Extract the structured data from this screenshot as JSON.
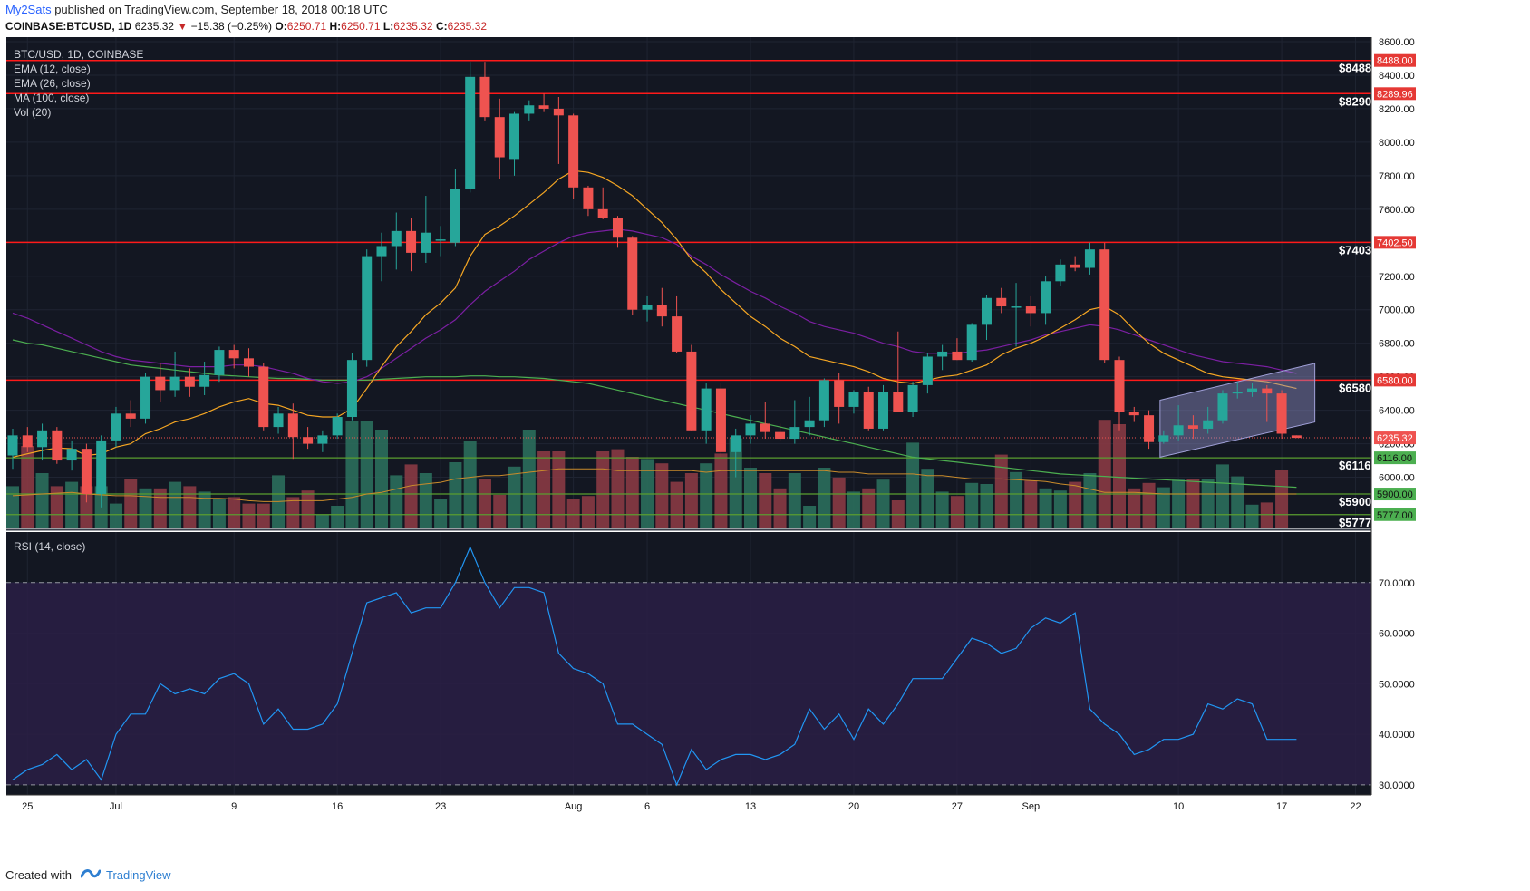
{
  "header": {
    "author": "My2Sats",
    "published": "published on TradingView.com, September 18, 2018 00:18 UTC",
    "symbol": "COINBASE:BTCUSD, 1D",
    "last": "6235.32",
    "change_arrow": "▼",
    "change": "−15.38 (−0.25%)",
    "o_label": "O:",
    "o_val": "6250.71",
    "h_label": "H:",
    "h_val": "6250.71",
    "l_label": "L:",
    "l_val": "6235.32",
    "c_label": "C:",
    "c_val": "6235.32"
  },
  "legend": {
    "symbol": "BTC/USD, 1D, COINBASE",
    "ema12": "EMA (12, close)",
    "ema26": "EMA (26, close)",
    "ma100": "MA (100, close)",
    "vol": "Vol (20)",
    "rsi": "RSI (14, close)"
  },
  "footer": {
    "created_with": "Created with",
    "brand": "TradingView"
  },
  "colors": {
    "bg": "#131722",
    "up": "#26a69a",
    "down": "#ef5350",
    "ema12": "#f5a623",
    "ema26": "#7b1fa2",
    "ma100": "#4caf50",
    "rsi": "#2196f3",
    "rsi_band": "#2a1f45",
    "resistance": "#ff1a1a",
    "support": "#5a9e2f",
    "channel": "#9090c8"
  },
  "chart_data": {
    "type": "candlestick",
    "price_axis": {
      "min": 5700,
      "max": 8600,
      "ticks": [
        "8600.00",
        "8400.00",
        "8200.00",
        "8000.00",
        "7800.00",
        "7600.00",
        "7400.00",
        "7200.00",
        "7000.00",
        "6800.00",
        "6600.00",
        "6400.00",
        "6200.00",
        "6000.00"
      ]
    },
    "rsi_axis": {
      "min": 28,
      "max": 80,
      "ticks": [
        "70.0000",
        "60.0000",
        "50.0000",
        "40.0000",
        "30.0000"
      ]
    },
    "x_ticks": [
      {
        "label": "25",
        "i": 1
      },
      {
        "label": "Jul",
        "i": 7
      },
      {
        "label": "9",
        "i": 15
      },
      {
        "label": "16",
        "i": 22
      },
      {
        "label": "23",
        "i": 29
      },
      {
        "label": "Aug",
        "i": 38
      },
      {
        "label": "6",
        "i": 43
      },
      {
        "label": "13",
        "i": 50
      },
      {
        "label": "20",
        "i": 57
      },
      {
        "label": "27",
        "i": 64
      },
      {
        "label": "Sep",
        "i": 69
      },
      {
        "label": "10",
        "i": 79
      },
      {
        "label": "17",
        "i": 86
      },
      {
        "label": "22",
        "i": 91
      }
    ],
    "candles": [
      {
        "o": 6130,
        "h": 6290,
        "l": 6050,
        "c": 6250
      },
      {
        "o": 6250,
        "h": 6300,
        "l": 6150,
        "c": 6180
      },
      {
        "o": 6180,
        "h": 6320,
        "l": 6100,
        "c": 6280
      },
      {
        "o": 6280,
        "h": 6300,
        "l": 6080,
        "c": 6100
      },
      {
        "o": 6100,
        "h": 6220,
        "l": 6040,
        "c": 6170
      },
      {
        "o": 6170,
        "h": 6200,
        "l": 5850,
        "c": 5900
      },
      {
        "o": 5900,
        "h": 6250,
        "l": 5820,
        "c": 6220
      },
      {
        "o": 6220,
        "h": 6420,
        "l": 6180,
        "c": 6380
      },
      {
        "o": 6380,
        "h": 6460,
        "l": 6300,
        "c": 6350
      },
      {
        "o": 6350,
        "h": 6620,
        "l": 6320,
        "c": 6600
      },
      {
        "o": 6600,
        "h": 6680,
        "l": 6450,
        "c": 6520
      },
      {
        "o": 6520,
        "h": 6750,
        "l": 6480,
        "c": 6600
      },
      {
        "o": 6600,
        "h": 6650,
        "l": 6480,
        "c": 6540
      },
      {
        "o": 6540,
        "h": 6690,
        "l": 6490,
        "c": 6610
      },
      {
        "o": 6610,
        "h": 6780,
        "l": 6570,
        "c": 6760
      },
      {
        "o": 6760,
        "h": 6790,
        "l": 6650,
        "c": 6710
      },
      {
        "o": 6710,
        "h": 6770,
        "l": 6600,
        "c": 6660
      },
      {
        "o": 6660,
        "h": 6680,
        "l": 6280,
        "c": 6300
      },
      {
        "o": 6300,
        "h": 6420,
        "l": 6260,
        "c": 6380
      },
      {
        "o": 6380,
        "h": 6440,
        "l": 6110,
        "c": 6240
      },
      {
        "o": 6240,
        "h": 6300,
        "l": 6170,
        "c": 6200
      },
      {
        "o": 6200,
        "h": 6280,
        "l": 6150,
        "c": 6250
      },
      {
        "o": 6250,
        "h": 6380,
        "l": 6230,
        "c": 6360
      },
      {
        "o": 6360,
        "h": 6740,
        "l": 6340,
        "c": 6700
      },
      {
        "o": 6700,
        "h": 7360,
        "l": 6660,
        "c": 7320
      },
      {
        "o": 7320,
        "h": 7460,
        "l": 7170,
        "c": 7380
      },
      {
        "o": 7380,
        "h": 7580,
        "l": 7240,
        "c": 7470
      },
      {
        "o": 7470,
        "h": 7550,
        "l": 7230,
        "c": 7340
      },
      {
        "o": 7340,
        "h": 7680,
        "l": 7280,
        "c": 7460
      },
      {
        "o": 7420,
        "h": 7500,
        "l": 7320,
        "c": 7420
      },
      {
        "o": 7400,
        "h": 7840,
        "l": 7380,
        "c": 7720
      },
      {
        "o": 7720,
        "h": 8480,
        "l": 7700,
        "c": 8390
      },
      {
        "o": 8390,
        "h": 8480,
        "l": 8130,
        "c": 8150
      },
      {
        "o": 8150,
        "h": 8260,
        "l": 7780,
        "c": 7910
      },
      {
        "o": 7900,
        "h": 8180,
        "l": 7800,
        "c": 8170
      },
      {
        "o": 8170,
        "h": 8250,
        "l": 8130,
        "c": 8220
      },
      {
        "o": 8220,
        "h": 8290,
        "l": 8180,
        "c": 8200
      },
      {
        "o": 8200,
        "h": 8270,
        "l": 7870,
        "c": 8160
      },
      {
        "o": 8160,
        "h": 8170,
        "l": 7660,
        "c": 7730
      },
      {
        "o": 7730,
        "h": 7740,
        "l": 7560,
        "c": 7600
      },
      {
        "o": 7600,
        "h": 7730,
        "l": 7540,
        "c": 7550
      },
      {
        "o": 7550,
        "h": 7560,
        "l": 7370,
        "c": 7430
      },
      {
        "o": 7430,
        "h": 7440,
        "l": 6970,
        "c": 7000
      },
      {
        "o": 7000,
        "h": 7080,
        "l": 6930,
        "c": 7030
      },
      {
        "o": 7030,
        "h": 7130,
        "l": 6900,
        "c": 6960
      },
      {
        "o": 6960,
        "h": 7080,
        "l": 6740,
        "c": 6750
      },
      {
        "o": 6750,
        "h": 6790,
        "l": 6280,
        "c": 6280
      },
      {
        "o": 6280,
        "h": 6560,
        "l": 6200,
        "c": 6530
      },
      {
        "o": 6530,
        "h": 6560,
        "l": 6120,
        "c": 6150
      },
      {
        "o": 6150,
        "h": 6290,
        "l": 6000,
        "c": 6250
      },
      {
        "o": 6250,
        "h": 6370,
        "l": 6200,
        "c": 6320
      },
      {
        "o": 6320,
        "h": 6450,
        "l": 6230,
        "c": 6270
      },
      {
        "o": 6270,
        "h": 6320,
        "l": 6220,
        "c": 6230
      },
      {
        "o": 6230,
        "h": 6460,
        "l": 6200,
        "c": 6300
      },
      {
        "o": 6300,
        "h": 6480,
        "l": 6250,
        "c": 6340
      },
      {
        "o": 6340,
        "h": 6590,
        "l": 6300,
        "c": 6580
      },
      {
        "o": 6580,
        "h": 6620,
        "l": 6320,
        "c": 6420
      },
      {
        "o": 6420,
        "h": 6520,
        "l": 6380,
        "c": 6510
      },
      {
        "o": 6510,
        "h": 6540,
        "l": 6280,
        "c": 6290
      },
      {
        "o": 6290,
        "h": 6550,
        "l": 6280,
        "c": 6510
      },
      {
        "o": 6510,
        "h": 6870,
        "l": 6390,
        "c": 6390
      },
      {
        "o": 6390,
        "h": 6570,
        "l": 6360,
        "c": 6550
      },
      {
        "o": 6550,
        "h": 6740,
        "l": 6500,
        "c": 6720
      },
      {
        "o": 6720,
        "h": 6790,
        "l": 6640,
        "c": 6750
      },
      {
        "o": 6750,
        "h": 6830,
        "l": 6700,
        "c": 6700
      },
      {
        "o": 6700,
        "h": 6920,
        "l": 6690,
        "c": 6910
      },
      {
        "o": 6910,
        "h": 7090,
        "l": 6820,
        "c": 7070
      },
      {
        "o": 7070,
        "h": 7130,
        "l": 6980,
        "c": 7020
      },
      {
        "o": 7020,
        "h": 7160,
        "l": 6780,
        "c": 7020
      },
      {
        "o": 7020,
        "h": 7080,
        "l": 6900,
        "c": 6980
      },
      {
        "o": 6980,
        "h": 7200,
        "l": 6910,
        "c": 7170
      },
      {
        "o": 7170,
        "h": 7300,
        "l": 7140,
        "c": 7270
      },
      {
        "o": 7270,
        "h": 7320,
        "l": 7230,
        "c": 7250
      },
      {
        "o": 7250,
        "h": 7400,
        "l": 7210,
        "c": 7360
      },
      {
        "o": 7360,
        "h": 7400,
        "l": 6680,
        "c": 6700
      },
      {
        "o": 6700,
        "h": 6720,
        "l": 6280,
        "c": 6390
      },
      {
        "o": 6390,
        "h": 6420,
        "l": 6330,
        "c": 6370
      },
      {
        "o": 6370,
        "h": 6400,
        "l": 6170,
        "c": 6210
      },
      {
        "o": 6210,
        "h": 6280,
        "l": 6200,
        "c": 6250
      },
      {
        "o": 6250,
        "h": 6430,
        "l": 6220,
        "c": 6310
      },
      {
        "o": 6310,
        "h": 6370,
        "l": 6230,
        "c": 6290
      },
      {
        "o": 6290,
        "h": 6420,
        "l": 6260,
        "c": 6340
      },
      {
        "o": 6340,
        "h": 6520,
        "l": 6320,
        "c": 6500
      },
      {
        "o": 6500,
        "h": 6570,
        "l": 6470,
        "c": 6510
      },
      {
        "o": 6510,
        "h": 6560,
        "l": 6480,
        "c": 6530
      },
      {
        "o": 6530,
        "h": 6550,
        "l": 6330,
        "c": 6500
      },
      {
        "o": 6500,
        "h": 6520,
        "l": 6230,
        "c": 6260
      },
      {
        "o": 6250,
        "h": 6250,
        "l": 6235,
        "c": 6235
      }
    ],
    "volume_rel": [
      0.38,
      0.75,
      0.5,
      0.38,
      0.42,
      0.38,
      0.38,
      0.22,
      0.45,
      0.36,
      0.36,
      0.42,
      0.38,
      0.33,
      0.27,
      0.28,
      0.22,
      0.22,
      0.48,
      0.28,
      0.34,
      0.12,
      0.2,
      0.98,
      0.98,
      0.9,
      0.48,
      0.58,
      0.5,
      0.26,
      0.6,
      0.8,
      0.45,
      0.3,
      0.56,
      0.9,
      0.7,
      0.7,
      0.26,
      0.29,
      0.7,
      0.72,
      0.65,
      0.63,
      0.59,
      0.42,
      0.5,
      0.59,
      0.68,
      0.82,
      0.55,
      0.5,
      0.36,
      0.5,
      0.2,
      0.55,
      0.46,
      0.33,
      0.36,
      0.44,
      0.25,
      0.78,
      0.54,
      0.33,
      0.29,
      0.41,
      0.4,
      0.67,
      0.51,
      0.43,
      0.36,
      0.34,
      0.42,
      0.5,
      0.99,
      0.95,
      0.36,
      0.41,
      0.37,
      0.44,
      0.45,
      0.45,
      0.58,
      0.47,
      0.21,
      0.23,
      0.53,
      0.0
    ],
    "ema12": [
      6120,
      6140,
      6160,
      6175,
      6170,
      6130,
      6140,
      6180,
      6200,
      6260,
      6290,
      6330,
      6350,
      6380,
      6420,
      6450,
      6470,
      6440,
      6430,
      6400,
      6370,
      6360,
      6360,
      6410,
      6530,
      6660,
      6780,
      6870,
      6970,
      7040,
      7130,
      7320,
      7450,
      7500,
      7560,
      7630,
      7700,
      7780,
      7830,
      7820,
      7790,
      7740,
      7680,
      7600,
      7520,
      7420,
      7300,
      7220,
      7120,
      7040,
      6960,
      6900,
      6830,
      6780,
      6720,
      6700,
      6680,
      6660,
      6630,
      6590,
      6570,
      6560,
      6580,
      6600,
      6610,
      6640,
      6670,
      6730,
      6770,
      6800,
      6840,
      6890,
      6940,
      7000,
      7020,
      6970,
      6880,
      6800,
      6740,
      6700,
      6660,
      6620,
      6600,
      6590,
      6580,
      6570,
      6550,
      6530
    ],
    "ema26": [
      6980,
      6950,
      6910,
      6870,
      6830,
      6790,
      6750,
      6720,
      6700,
      6690,
      6680,
      6670,
      6660,
      6660,
      6660,
      6670,
      6670,
      6660,
      6640,
      6620,
      6590,
      6570,
      6560,
      6570,
      6600,
      6650,
      6710,
      6770,
      6830,
      6880,
      6940,
      7030,
      7110,
      7170,
      7230,
      7300,
      7350,
      7400,
      7440,
      7460,
      7470,
      7480,
      7470,
      7450,
      7430,
      7390,
      7320,
      7270,
      7210,
      7160,
      7110,
      7070,
      7020,
      6980,
      6930,
      6900,
      6880,
      6860,
      6830,
      6800,
      6780,
      6750,
      6740,
      6740,
      6740,
      6750,
      6760,
      6780,
      6800,
      6820,
      6850,
      6870,
      6890,
      6910,
      6900,
      6880,
      6850,
      6820,
      6790,
      6760,
      6730,
      6710,
      6690,
      6680,
      6670,
      6660,
      6640,
      6620
    ],
    "ma100": [
      6820,
      6800,
      6790,
      6770,
      6750,
      6730,
      6710,
      6690,
      6670,
      6660,
      6650,
      6640,
      6630,
      6620,
      6610,
      6605,
      6600,
      6595,
      6590,
      6590,
      6585,
      6580,
      6580,
      6580,
      6580,
      6585,
      6590,
      6595,
      6600,
      6600,
      6600,
      6605,
      6605,
      6600,
      6600,
      6595,
      6590,
      6580,
      6570,
      6560,
      6540,
      6520,
      6500,
      6480,
      6460,
      6440,
      6420,
      6400,
      6380,
      6360,
      6340,
      6320,
      6300,
      6280,
      6260,
      6240,
      6220,
      6200,
      6180,
      6160,
      6140,
      6120,
      6110,
      6100,
      6090,
      6080,
      6070,
      6060,
      6050,
      6040,
      6030,
      6020,
      6015,
      6010,
      6005,
      6000,
      5995,
      5990,
      5985,
      5980,
      5975,
      5970,
      5965,
      5960,
      5955,
      5950,
      5945,
      5940
    ],
    "vol_ma": [
      5890,
      5895,
      5900,
      5905,
      5910,
      5900,
      5895,
      5890,
      5890,
      5885,
      5880,
      5880,
      5880,
      5875,
      5875,
      5870,
      5860,
      5855,
      5855,
      5860,
      5860,
      5860,
      5870,
      5880,
      5900,
      5910,
      5930,
      5950,
      5960,
      5970,
      5990,
      6000,
      6010,
      6010,
      6020,
      6030,
      6040,
      6050,
      6050,
      6050,
      6050,
      6040,
      6040,
      6040,
      6040,
      6040,
      6040,
      6030,
      6040,
      6040,
      6040,
      6040,
      6040,
      6040,
      6040,
      6040,
      6030,
      6030,
      6020,
      6020,
      6020,
      6020,
      6010,
      6010,
      6000,
      5990,
      5990,
      5990,
      5985,
      5980,
      5975,
      5960,
      5950,
      5930,
      5910,
      5910,
      5910,
      5905,
      5900,
      5900,
      5900,
      5900,
      5900,
      5900,
      5900,
      5900,
      5900,
      5900
    ],
    "rsi": [
      31,
      33,
      34,
      36,
      33,
      35,
      31,
      40,
      44,
      44,
      50,
      48,
      49,
      48,
      51,
      52,
      50,
      42,
      45,
      41,
      41,
      42,
      46,
      56,
      66,
      67,
      68,
      64,
      65,
      65,
      70,
      77,
      70,
      65,
      69,
      69,
      68,
      56,
      53,
      52,
      50,
      42,
      42,
      40,
      38,
      30,
      37,
      33,
      35,
      36,
      36,
      35,
      36,
      38,
      45,
      41,
      44,
      39,
      45,
      42,
      46,
      51,
      51,
      51,
      55,
      59,
      58,
      56,
      57,
      61,
      63,
      62,
      64,
      45,
      42,
      40,
      36,
      37,
      39,
      39,
      40,
      46,
      45,
      47,
      46,
      39,
      39,
      39
    ],
    "levels": [
      {
        "price": 8488,
        "axis_label": "8488.00",
        "text_label": "$8488",
        "kind": "resistance"
      },
      {
        "price": 8289.96,
        "axis_label": "8289.96",
        "text_label": "$8290",
        "kind": "resistance"
      },
      {
        "price": 7402.5,
        "axis_label": "7402.50",
        "text_label": "$7403",
        "kind": "resistance"
      },
      {
        "price": 6580,
        "axis_label": "6580.00",
        "text_label": "$6580",
        "kind": "resistance"
      },
      {
        "price": 6116,
        "axis_label": "6116.00",
        "text_label": "$6116",
        "kind": "support"
      },
      {
        "price": 5900,
        "axis_label": "5900.00",
        "text_label": "$5900",
        "kind": "support"
      },
      {
        "price": 5777,
        "axis_label": "5777.00",
        "text_label": "$5777",
        "kind": "support"
      }
    ],
    "last_price": {
      "price": 6235.32,
      "label": "6235.32"
    },
    "channel": {
      "from_i": 78,
      "to_i": 88,
      "lower_from": 6120,
      "lower_to": 6330,
      "upper_from": 6460,
      "upper_to": 6680
    }
  }
}
